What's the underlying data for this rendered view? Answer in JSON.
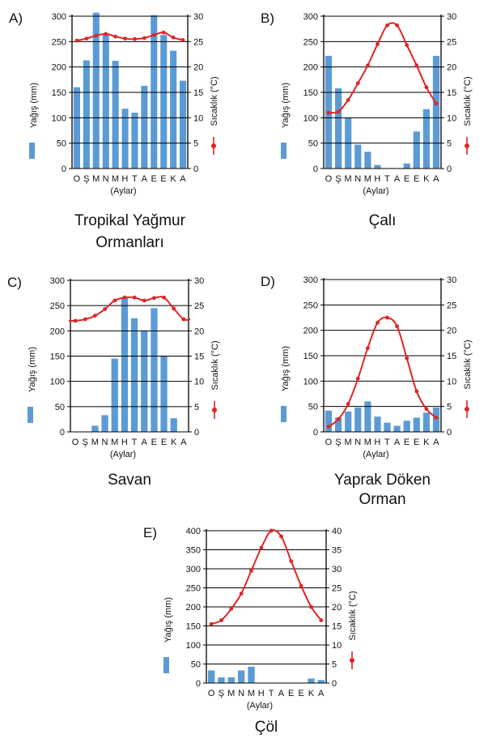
{
  "colors": {
    "bar": "#5b9bd5",
    "line": "#e02424",
    "grid": "#000000"
  },
  "common": {
    "months": [
      "O",
      "Ş",
      "M",
      "N",
      "M",
      "H",
      "T",
      "A",
      "E",
      "E",
      "K",
      "A"
    ],
    "xsub": "(Aylar)",
    "ylabel_left": "Yağış (mm)",
    "ylabel_right": "Sıcaklık (°C)"
  },
  "chart_data": [
    {
      "type": "bar",
      "panel": "A)",
      "caption": [
        "Tropikal Yağmur",
        "Ormanları"
      ],
      "ylim": [
        0,
        300
      ],
      "yticks": [
        0,
        50,
        100,
        150,
        200,
        250,
        300
      ],
      "y2lim": [
        0,
        30
      ],
      "y2ticks": [
        0,
        5,
        10,
        15,
        20,
        25,
        30
      ],
      "categories": [
        "O",
        "Ş",
        "M",
        "N",
        "M",
        "H",
        "T",
        "A",
        "E",
        "E",
        "K",
        "A"
      ],
      "series": [
        {
          "values": [
            160,
            213,
            307,
            263,
            212,
            118,
            110,
            163,
            302,
            263,
            232,
            173
          ]
        },
        {
          "values": [
            25.2,
            25.6,
            26.2,
            26.5,
            26.0,
            25.6,
            25.5,
            25.7,
            26.3,
            26.8,
            25.8,
            25.3
          ]
        }
      ]
    },
    {
      "type": "bar",
      "panel": "B)",
      "caption": [
        "Çalı"
      ],
      "ylim": [
        0,
        300
      ],
      "yticks": [
        0,
        50,
        100,
        150,
        200,
        250,
        300
      ],
      "y2lim": [
        0,
        30
      ],
      "y2ticks": [
        0,
        5,
        10,
        15,
        20,
        25,
        30
      ],
      "categories": [
        "O",
        "Ş",
        "M",
        "N",
        "M",
        "H",
        "T",
        "A",
        "E",
        "E",
        "K",
        "A"
      ],
      "series": [
        {
          "values": [
            222,
            158,
            100,
            47,
            33,
            7,
            0,
            0,
            10,
            73,
            117,
            222
          ]
        },
        {
          "values": [
            11.0,
            11.2,
            13.5,
            16.8,
            20.3,
            24.5,
            28.2,
            28.2,
            24.3,
            20.3,
            16.0,
            12.8
          ]
        }
      ]
    },
    {
      "type": "bar",
      "panel": "C)",
      "caption": [
        "Savan"
      ],
      "ylim": [
        0,
        300
      ],
      "yticks": [
        0,
        50,
        100,
        150,
        200,
        250,
        300
      ],
      "y2lim": [
        0,
        30
      ],
      "y2ticks": [
        0,
        5,
        10,
        15,
        20,
        25,
        30
      ],
      "categories": [
        "O",
        "Ş",
        "M",
        "N",
        "M",
        "H",
        "T",
        "A",
        "E",
        "E",
        "K",
        "A"
      ],
      "series": [
        {
          "values": [
            0,
            0,
            12,
            33,
            145,
            265,
            225,
            200,
            245,
            150,
            27,
            0
          ]
        },
        {
          "values": [
            22.0,
            22.3,
            23.0,
            24.3,
            26.0,
            26.6,
            26.6,
            26.0,
            26.5,
            26.6,
            24.4,
            22.3
          ]
        }
      ]
    },
    {
      "type": "bar",
      "panel": "D)",
      "caption": [
        "Yaprak Döken",
        "Orman"
      ],
      "ylim": [
        0,
        300
      ],
      "yticks": [
        0,
        50,
        100,
        150,
        200,
        250,
        300
      ],
      "y2lim": [
        0,
        30
      ],
      "y2ticks": [
        0,
        5,
        10,
        15,
        20,
        25,
        30
      ],
      "categories": [
        "O",
        "Ş",
        "M",
        "N",
        "M",
        "H",
        "T",
        "A",
        "E",
        "E",
        "K",
        "A"
      ],
      "series": [
        {
          "values": [
            42,
            28,
            40,
            48,
            60,
            30,
            18,
            12,
            22,
            28,
            38,
            48
          ]
        },
        {
          "values": [
            1.0,
            2.5,
            5.5,
            10.5,
            16.5,
            21.5,
            22.5,
            20.8,
            14.5,
            8.0,
            4.5,
            2.8
          ]
        }
      ]
    },
    {
      "type": "bar",
      "panel": "E)",
      "caption": [
        "Çöl"
      ],
      "ylim": [
        0,
        400
      ],
      "yticks": [
        0,
        50,
        100,
        150,
        200,
        250,
        300,
        350,
        400
      ],
      "y2lim": [
        0,
        40
      ],
      "y2ticks": [
        0,
        5,
        10,
        15,
        20,
        25,
        30,
        35,
        40
      ],
      "categories": [
        "O",
        "Ş",
        "M",
        "N",
        "M",
        "H",
        "T",
        "A",
        "E",
        "E",
        "K",
        "A"
      ],
      "series": [
        {
          "values": [
            33,
            15,
            15,
            33,
            43,
            0,
            0,
            0,
            0,
            0,
            12,
            8
          ]
        },
        {
          "values": [
            15.5,
            16.5,
            19.5,
            23.5,
            29.5,
            35.5,
            40,
            38.5,
            32,
            25.5,
            20,
            16.5
          ]
        }
      ]
    }
  ]
}
